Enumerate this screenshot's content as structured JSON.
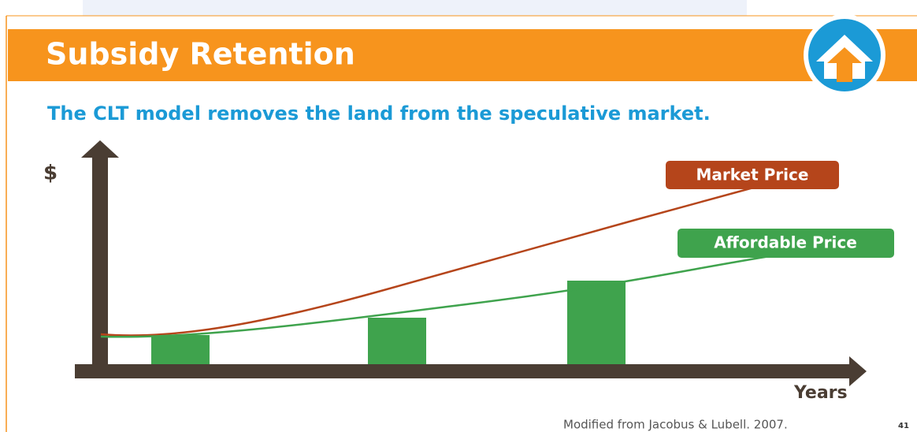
{
  "header": {
    "title": "Subsidy Retention"
  },
  "subtitle": "The CLT model removes the land from the speculative market.",
  "diagram": {
    "y_axis_label": "$",
    "x_axis_label": "Years",
    "lines": [
      {
        "label": "Market Price"
      },
      {
        "label": "Affordable Price"
      }
    ]
  },
  "footer": {
    "source": "Modified from Jacobus & Lubell. 2007.",
    "page_number": "41"
  }
}
